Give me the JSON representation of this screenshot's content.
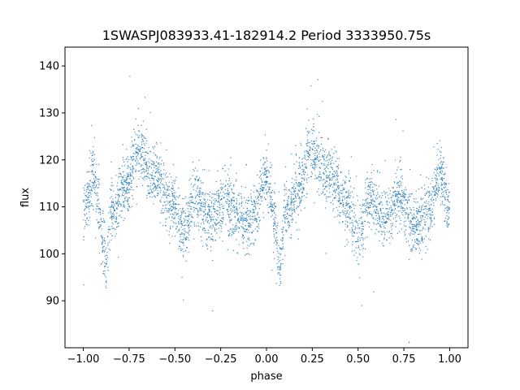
{
  "chart_data": {
    "type": "scatter",
    "title": "1SWASPJ083933.41-182914.2 Period 3333950.75s",
    "xlabel": "phase",
    "ylabel": "flux",
    "xlim": [
      -1.1,
      1.1
    ],
    "ylim": [
      80,
      144
    ],
    "xticks": [
      -1.0,
      -0.75,
      -0.5,
      -0.25,
      0.0,
      0.25,
      0.5,
      0.75,
      1.0
    ],
    "xtick_labels": [
      "−1.00",
      "−0.75",
      "−0.50",
      "−0.25",
      "0.00",
      "0.25",
      "0.50",
      "0.75",
      "1.00"
    ],
    "yticks": [
      90,
      100,
      110,
      120,
      130,
      140
    ],
    "ytick_labels": [
      "90",
      "100",
      "110",
      "120",
      "130",
      "140"
    ],
    "grid": false,
    "legend": "none",
    "marker_color": "#1f77b4",
    "series": [
      {
        "x": [
          -1.0,
          -0.975,
          -0.95,
          -0.925,
          -0.9,
          -0.875,
          -0.85,
          -0.825,
          -0.8,
          -0.775,
          -0.75,
          -0.725,
          -0.7,
          -0.675,
          -0.65,
          -0.625,
          -0.6,
          -0.575,
          -0.55,
          -0.525,
          -0.5,
          -0.475,
          -0.45,
          -0.425,
          -0.4,
          -0.375,
          -0.35,
          -0.325,
          -0.3,
          -0.275,
          -0.25,
          -0.225,
          -0.2,
          -0.175,
          -0.15,
          -0.125,
          -0.1,
          -0.075,
          -0.05,
          -0.025,
          0.0,
          0.025,
          0.05,
          0.075,
          0.1,
          0.125,
          0.15,
          0.175,
          0.2,
          0.225,
          0.25,
          0.275,
          0.3,
          0.325,
          0.35,
          0.375,
          0.4,
          0.425,
          0.45,
          0.475,
          0.5,
          0.525,
          0.55,
          0.575,
          0.6,
          0.625,
          0.65,
          0.675,
          0.7,
          0.725,
          0.75,
          0.775,
          0.8,
          0.825,
          0.85,
          0.875,
          0.9,
          0.925,
          0.95,
          0.975,
          1.0
        ],
        "y": [
          109,
          112,
          118,
          112,
          105,
          96,
          110,
          108,
          113,
          114,
          116,
          120,
          122,
          121,
          119,
          116,
          118,
          115,
          112,
          111,
          110,
          107,
          104,
          106,
          112,
          113,
          110,
          108,
          107,
          109,
          111,
          112,
          110,
          109,
          107,
          106,
          106,
          108,
          110,
          114,
          118,
          112,
          105,
          96,
          110,
          108,
          113,
          114,
          116,
          120,
          122,
          121,
          119,
          116,
          118,
          115,
          112,
          111,
          110,
          107,
          104,
          106,
          112,
          113,
          110,
          108,
          107,
          109,
          111,
          112,
          110,
          109,
          107,
          106,
          106,
          108,
          110,
          114,
          118,
          112,
          109
        ]
      }
    ]
  }
}
